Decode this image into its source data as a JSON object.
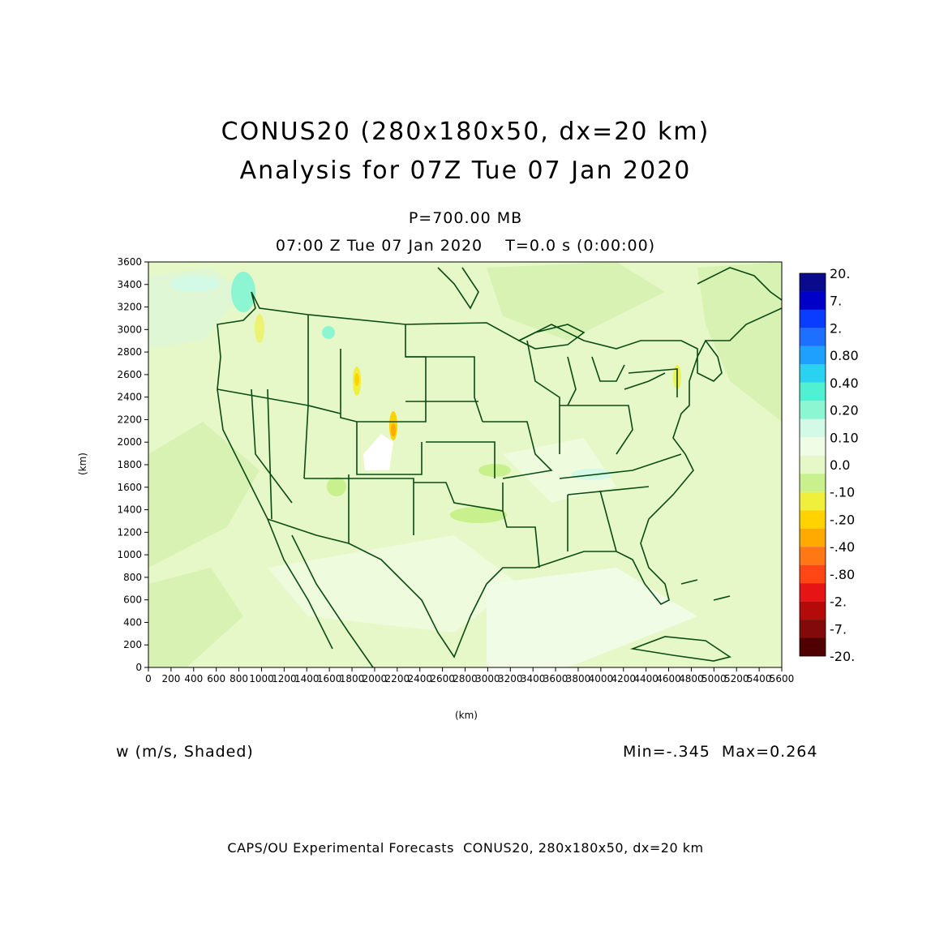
{
  "header": {
    "title_line1": "CONUS20 (280x180x50, dx=20 km)",
    "title_line2": "Analysis for 07Z Tue 07 Jan 2020",
    "level": "P=700.00 MB",
    "time": "07:00 Z Tue 07 Jan 2020    T=0.0 s (0:00:00)"
  },
  "field_label": "w (m/s, Shaded)",
  "minmax": "Min=-.345  Max=0.264",
  "footer": "CAPS/OU Experimental Forecasts  CONUS20, 280x180x50, dx=20 km",
  "chart_data": {
    "type": "heatmap",
    "xlabel": "(km)",
    "ylabel": "(km)",
    "xlim": [
      0,
      5600
    ],
    "ylim": [
      0,
      3600
    ],
    "x_ticks": [
      0,
      200,
      400,
      600,
      800,
      1000,
      1200,
      1400,
      1600,
      1800,
      2000,
      2200,
      2400,
      2600,
      2800,
      3000,
      3200,
      3400,
      3600,
      3800,
      4000,
      4200,
      4400,
      4600,
      4800,
      5000,
      5200,
      5400,
      5600
    ],
    "y_ticks": [
      0,
      200,
      400,
      600,
      800,
      1000,
      1200,
      1400,
      1600,
      1800,
      2000,
      2200,
      2400,
      2600,
      2800,
      3000,
      3200,
      3400,
      3600
    ],
    "colorbar": {
      "labels": [
        "20.",
        "7.",
        "2.",
        "0.80",
        "0.40",
        "0.20",
        "0.10",
        "0.0",
        "-.10",
        "-.20",
        "-.40",
        "-.80",
        "-2.",
        "-7.",
        "-20."
      ],
      "colors": [
        "#0a0a8c",
        "#0000c8",
        "#0a3cff",
        "#1e6eff",
        "#1ea0ff",
        "#28d2f0",
        "#50f0d2",
        "#8cf5d2",
        "#d2fae6",
        "#f0fce6",
        "#e6f8c8",
        "#c8f08c",
        "#f0f03c",
        "#ffd200",
        "#ffaa00",
        "#ff7814",
        "#ff4614",
        "#e61414",
        "#b40a0a",
        "#820a0a",
        "#500000"
      ]
    },
    "min": -0.345,
    "max": 0.264
  }
}
